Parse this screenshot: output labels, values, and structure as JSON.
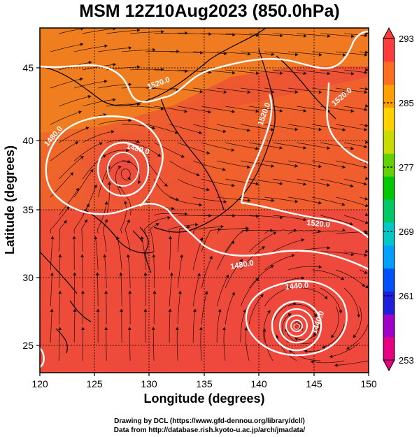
{
  "title": "MSM 12Z10Aug2023 (850.0hPa)",
  "x_axis": {
    "label": "Longitude (degrees)",
    "min": 120,
    "max": 150,
    "ticks": [
      "120",
      "125",
      "130",
      "135",
      "140",
      "145",
      "150"
    ]
  },
  "y_axis": {
    "label": "Latitude  (degrees)",
    "min": 22.4,
    "max": 47.6,
    "ticks": [
      "25",
      "30",
      "35",
      "40",
      "45"
    ]
  },
  "colorbar": {
    "min_label": "253",
    "max_label": "293",
    "tick_labels": [
      "285",
      "277",
      "269",
      "261"
    ],
    "colors": [
      "#e60082",
      "#a000c8",
      "#1e1edc",
      "#0050ff",
      "#00a0ff",
      "#00c8c8",
      "#00c864",
      "#00c800",
      "#64d200",
      "#c8dc00",
      "#ffd200",
      "#ffa000",
      "#ff6e1e",
      "#ff3c3c"
    ]
  },
  "contours": [
    {
      "label": "1520.0"
    },
    {
      "label": "1520.0"
    },
    {
      "label": "1520.0"
    },
    {
      "label": "1520.0"
    },
    {
      "label": "1480.0"
    },
    {
      "label": "1480.0"
    },
    {
      "label": "1480.0"
    },
    {
      "label": "1440.0"
    },
    {
      "label": "1440.0"
    }
  ],
  "footer": {
    "line1": "Drawing by DCL (https://www.gfd-dennou.org/library/dcl/)",
    "line2": "Data from http://database.rish.kyoto-u.ac.jp/arch/jmadata/"
  }
}
